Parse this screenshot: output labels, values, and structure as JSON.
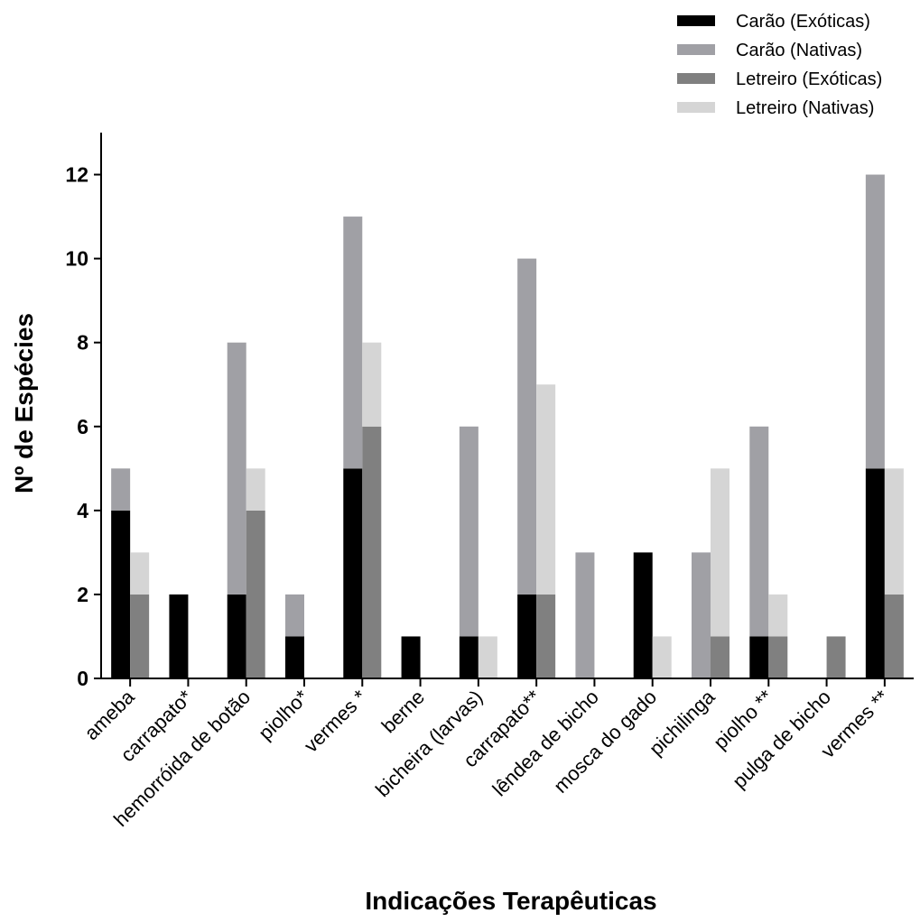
{
  "chart_data": {
    "type": "bar",
    "stacked": true,
    "grouped": true,
    "xlabel": "Indicações Terapêuticas",
    "ylabel": "Nº de Espécies",
    "ylim": [
      0,
      13
    ],
    "yticks": [
      0,
      2,
      4,
      6,
      8,
      10,
      12
    ],
    "legend_position": "top-right",
    "grid": false,
    "categories": [
      "ameba",
      "carrapato*",
      "hemorróida de botão",
      "piolho*",
      "vermes *",
      "berne",
      "bicheira (larvas)",
      "carrapato**",
      "lêndea de bicho",
      "mosca do gado",
      "pichilinga",
      "piolho **",
      "pulga de bicho",
      "vermes **"
    ],
    "groups": [
      {
        "name": "Carão",
        "series": [
          {
            "name": "Carão (Exóticas)",
            "color": "#000000",
            "values": [
              4,
              2,
              2,
              1,
              5,
              1,
              1,
              2,
              0,
              3,
              0,
              1,
              0,
              5
            ]
          },
          {
            "name": "Carão (Nativas)",
            "color": "#a0a0a5",
            "values": [
              1,
              0,
              6,
              1,
              6,
              0,
              5,
              8,
              3,
              0,
              3,
              5,
              0,
              7
            ]
          }
        ]
      },
      {
        "name": "Letreiro",
        "series": [
          {
            "name": "Letreiro (Exóticas)",
            "color": "#808080",
            "values": [
              2,
              0,
              4,
              0,
              6,
              0,
              0,
              2,
              0,
              0,
              1,
              1,
              1,
              2
            ]
          },
          {
            "name": "Letreiro (Nativas)",
            "color": "#d5d5d5",
            "values": [
              1,
              0,
              1,
              0,
              2,
              0,
              1,
              5,
              0,
              1,
              4,
              1,
              0,
              3
            ]
          }
        ]
      }
    ]
  }
}
